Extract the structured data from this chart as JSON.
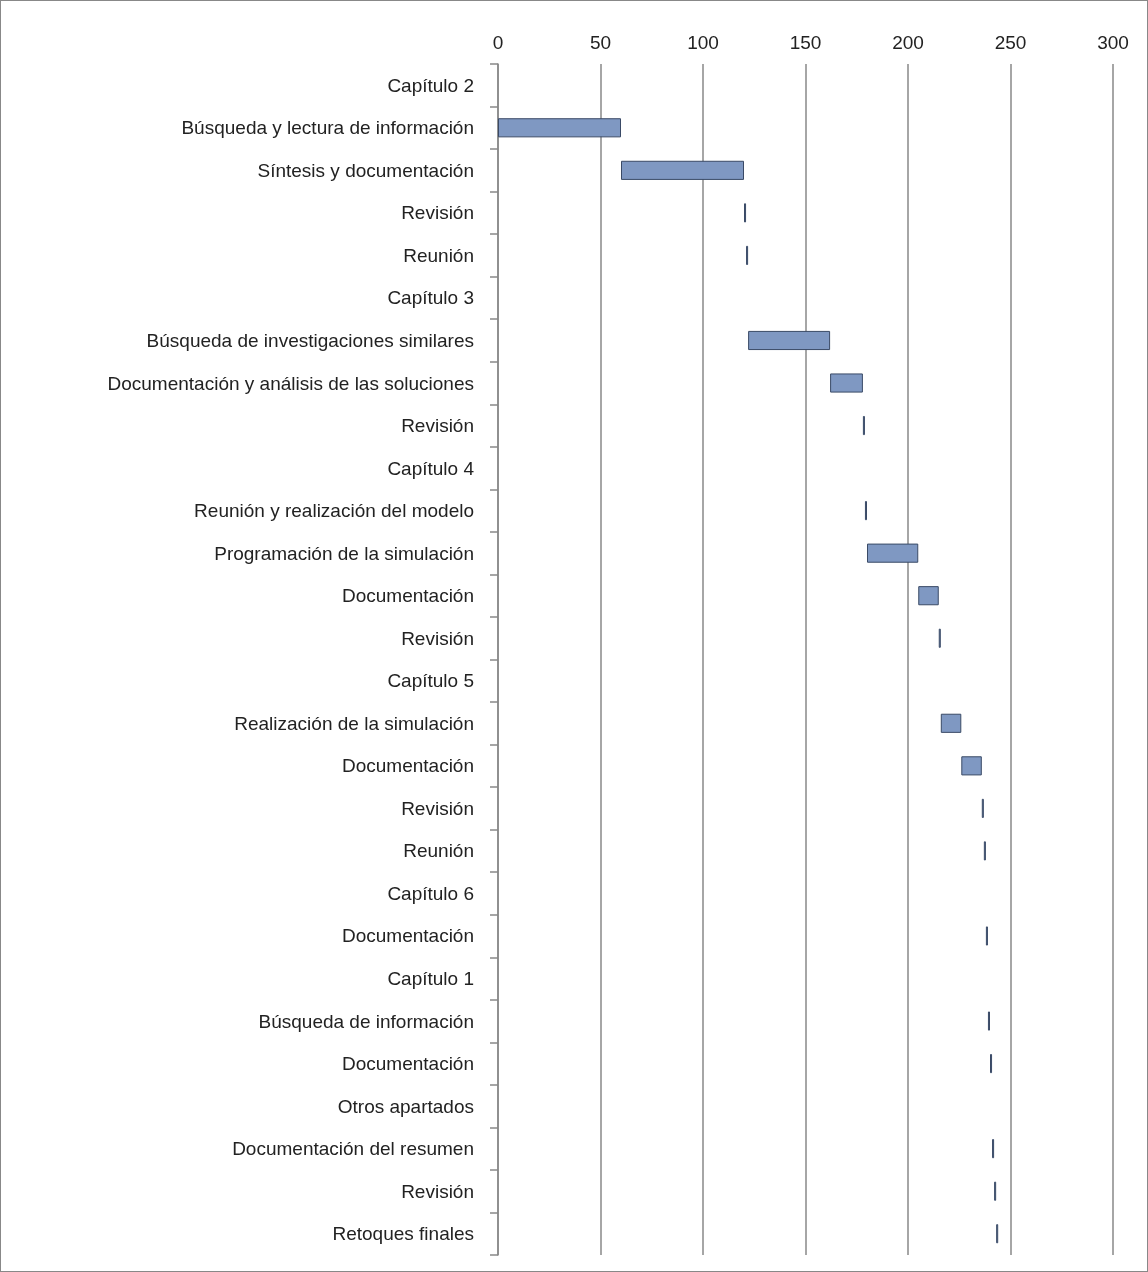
{
  "chart_data": {
    "type": "bar",
    "orientation": "horizontal",
    "categories": [
      "Capítulo 2",
      "Búsqueda y lectura de información",
      "Síntesis y documentación",
      "Revisión",
      "Reunión",
      "Capítulo 3",
      "Búsqueda de investigaciones similares",
      "Documentación y análisis de las soluciones",
      "Revisión",
      "Capítulo 4",
      "Reunión y realización del modelo",
      "Programación de la simulación",
      "Documentación",
      "Revisión",
      "Capítulo 5",
      "Realización de la simulación",
      "Documentación",
      "Revisión",
      "Reunión",
      "Capítulo 6",
      "Documentación",
      "Capítulo 1",
      "Búsqueda de información",
      "Documentación",
      "Otros apartados",
      "Documentación del resumen",
      "Revisión",
      "Retoques finales"
    ],
    "base": [
      null,
      0,
      60,
      120,
      121,
      null,
      122,
      162,
      178,
      null,
      179,
      180,
      205,
      215,
      null,
      216,
      226,
      236,
      237,
      null,
      238,
      null,
      239,
      240,
      null,
      241,
      242,
      243
    ],
    "values": [
      null,
      60,
      60,
      1,
      1,
      null,
      40,
      16,
      1,
      null,
      1,
      25,
      10,
      1,
      null,
      10,
      10,
      1,
      1,
      null,
      1,
      null,
      1,
      1,
      null,
      1,
      1,
      1
    ],
    "color": "#7f98c2",
    "xlim": [
      0,
      300
    ],
    "xticks": [
      0,
      50,
      100,
      150,
      200,
      250,
      300
    ],
    "grid": "x"
  }
}
